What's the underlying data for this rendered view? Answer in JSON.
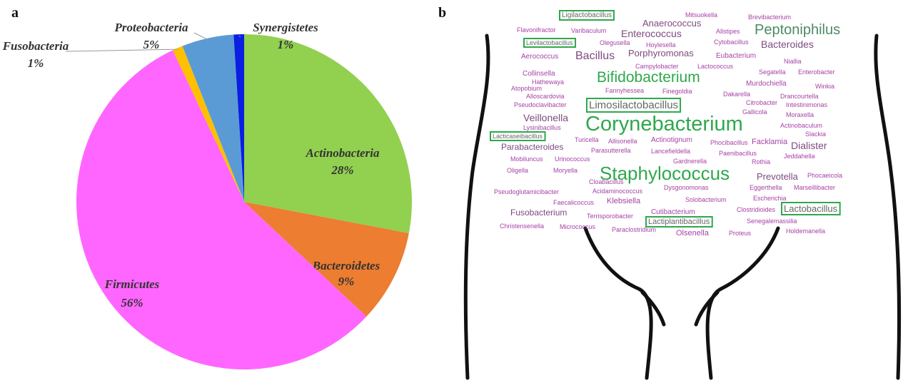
{
  "chart_data": [
    {
      "type": "pie",
      "label": "a",
      "categories": [
        "Actinobacteria",
        "Bacteroidetes",
        "Firmicutes",
        "Fusobacteria",
        "Proteobacteria",
        "Synergistetes"
      ],
      "values": [
        28,
        9,
        56,
        1,
        5,
        1
      ],
      "value_labels": [
        "28%",
        "9%",
        "56%",
        "1%",
        "5%",
        "1%"
      ],
      "colors": [
        "#92d050",
        "#ed7d31",
        "#ff66ff",
        "#ffc000",
        "#5b9bd5",
        "#0a1fe0"
      ]
    },
    {
      "type": "wordcloud",
      "label": "b",
      "words": [
        "Ligilactobacillus",
        "Mitsuokella",
        "Brevibacterium",
        "Anaerococcus",
        "Flavonifractor",
        "Varibaculum",
        "Enterococcus",
        "Allstipes",
        "Peptoniphilus",
        "Levilactobacillus",
        "Olegusella",
        "Hoylesella",
        "Cytobacillus",
        "Bacteroides",
        "Aerococcus",
        "Bacillus",
        "Porphyromonas",
        "Eubacterium",
        "Campylobacter",
        "Lactococcus",
        "Niallia",
        "Collinsella",
        "Bifidobacterium",
        "Segatella",
        "Enterobacter",
        "Hathewaya",
        "Murdochiella",
        "Atopobium",
        "Fannyhessea",
        "Finegoldia",
        "Winkia",
        "Alloscardovia",
        "Dakarella",
        "Drancourtella",
        "Limosilactobacillus",
        "Pseudoclavibacter",
        "Citrobacter",
        "Intestinimonas",
        "Veillonella",
        "Gallicola",
        "Moraxella",
        "Corynebacterium",
        "Lysinibacillus",
        "Actinobaculum",
        "Lacticaseibacillus",
        "Slackia",
        "Turicella",
        "Allisonella",
        "Actinotignum",
        "Phocibacillus",
        "Facklamia",
        "Parabacteroides",
        "Dialister",
        "Parasutterella",
        "Lancefieldella",
        "Paenibacillus",
        "Mobiluncus",
        "Urinococcus",
        "Gardnerella",
        "Rothia",
        "Jeddahella",
        "Oligella",
        "Moryella",
        "Staphylococcus",
        "Prevotella",
        "Phocaeicola",
        "Cloabacillus",
        "Dysgonomonas",
        "Eggerthella",
        "Marseillibacter",
        "Pseudoglutamicibacter",
        "Acidaminococcus",
        "Faecalicoccus",
        "Klebsiella",
        "Solobacterium",
        "Escherichia",
        "Fusobacterium",
        "Cutibacterium",
        "Clostridioides",
        "Lactobacillus",
        "Terrisporobacter",
        "Lactiplantibacillus",
        "Senegalemassilia",
        "Christensenella",
        "Micrococcus",
        "Paraclostridium",
        "Olsenella",
        "Proteus",
        "Holdemanella"
      ]
    }
  ]
}
